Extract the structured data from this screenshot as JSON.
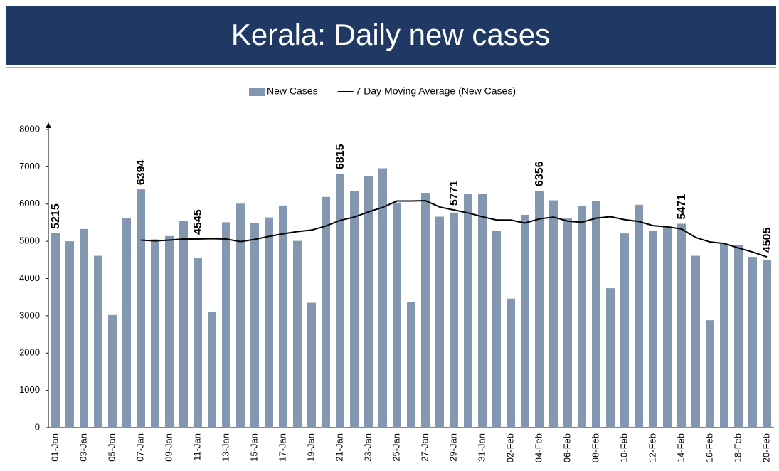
{
  "chart_data": {
    "type": "bar",
    "title": "Kerala: Daily new cases",
    "categories": [
      "01-Jan",
      null,
      "03-Jan",
      null,
      "05-Jan",
      null,
      "07-Jan",
      null,
      "09-Jan",
      null,
      "11-Jan",
      null,
      "13-Jan",
      null,
      "15-Jan",
      null,
      "17-Jan",
      null,
      "19-Jan",
      null,
      "21-Jan",
      null,
      "23-Jan",
      null,
      "25-Jan",
      null,
      "27-Jan",
      null,
      "29-Jan",
      null,
      "31-Jan",
      null,
      "02-Feb",
      null,
      "04-Feb",
      null,
      "06-Feb",
      null,
      "08-Feb",
      null,
      "10-Feb",
      null,
      "12-Feb",
      null,
      "14-Feb",
      null,
      "16-Feb",
      null,
      "18-Feb",
      null,
      "20-Feb"
    ],
    "series": [
      {
        "name": "New Cases",
        "color": "#8497b0",
        "values": [
          5215,
          5000,
          5330,
          4610,
          3020,
          5620,
          6394,
          5050,
          5140,
          5540,
          4545,
          3110,
          5510,
          6010,
          5500,
          5640,
          5960,
          5010,
          3350,
          6190,
          6815,
          6340,
          6750,
          6960,
          6040,
          3360,
          6300,
          5660,
          5771,
          6270,
          6280,
          5270,
          3460,
          5710,
          6356,
          6100,
          5610,
          5940,
          6080,
          3740,
          5210,
          5980,
          5290,
          5380,
          5471,
          4610,
          2880,
          4930,
          4890,
          4580,
          4505
        ],
        "value_labels": [
          "5215",
          null,
          null,
          null,
          null,
          null,
          "6394",
          null,
          null,
          null,
          "4545",
          null,
          null,
          null,
          null,
          null,
          null,
          null,
          null,
          null,
          "6815",
          null,
          null,
          null,
          null,
          null,
          null,
          null,
          "5771",
          null,
          null,
          null,
          null,
          null,
          "6356",
          null,
          null,
          null,
          null,
          null,
          null,
          null,
          null,
          null,
          "5471",
          null,
          null,
          null,
          null,
          null,
          "4505"
        ]
      },
      {
        "name": "7 Day Moving Average (New Cases)",
        "color": "#000000",
        "type": "line",
        "values": [
          null,
          null,
          null,
          null,
          null,
          null,
          5030,
          5010,
          5030,
          5060,
          5060,
          5070,
          5060,
          4990,
          5050,
          5130,
          5200,
          5260,
          5300,
          5410,
          5560,
          5650,
          5790,
          5910,
          6080,
          6080,
          6090,
          5920,
          5840,
          5760,
          5660,
          5570,
          5570,
          5490,
          5600,
          5650,
          5540,
          5510,
          5620,
          5660,
          5580,
          5530,
          5420,
          5390,
          5330,
          5100,
          4980,
          4940,
          4820,
          4710,
          4580
        ]
      }
    ],
    "ylim": [
      0,
      8000
    ],
    "yticks": [
      0,
      1000,
      2000,
      3000,
      4000,
      5000,
      6000,
      7000,
      8000
    ],
    "grid": false,
    "legend": "top"
  }
}
